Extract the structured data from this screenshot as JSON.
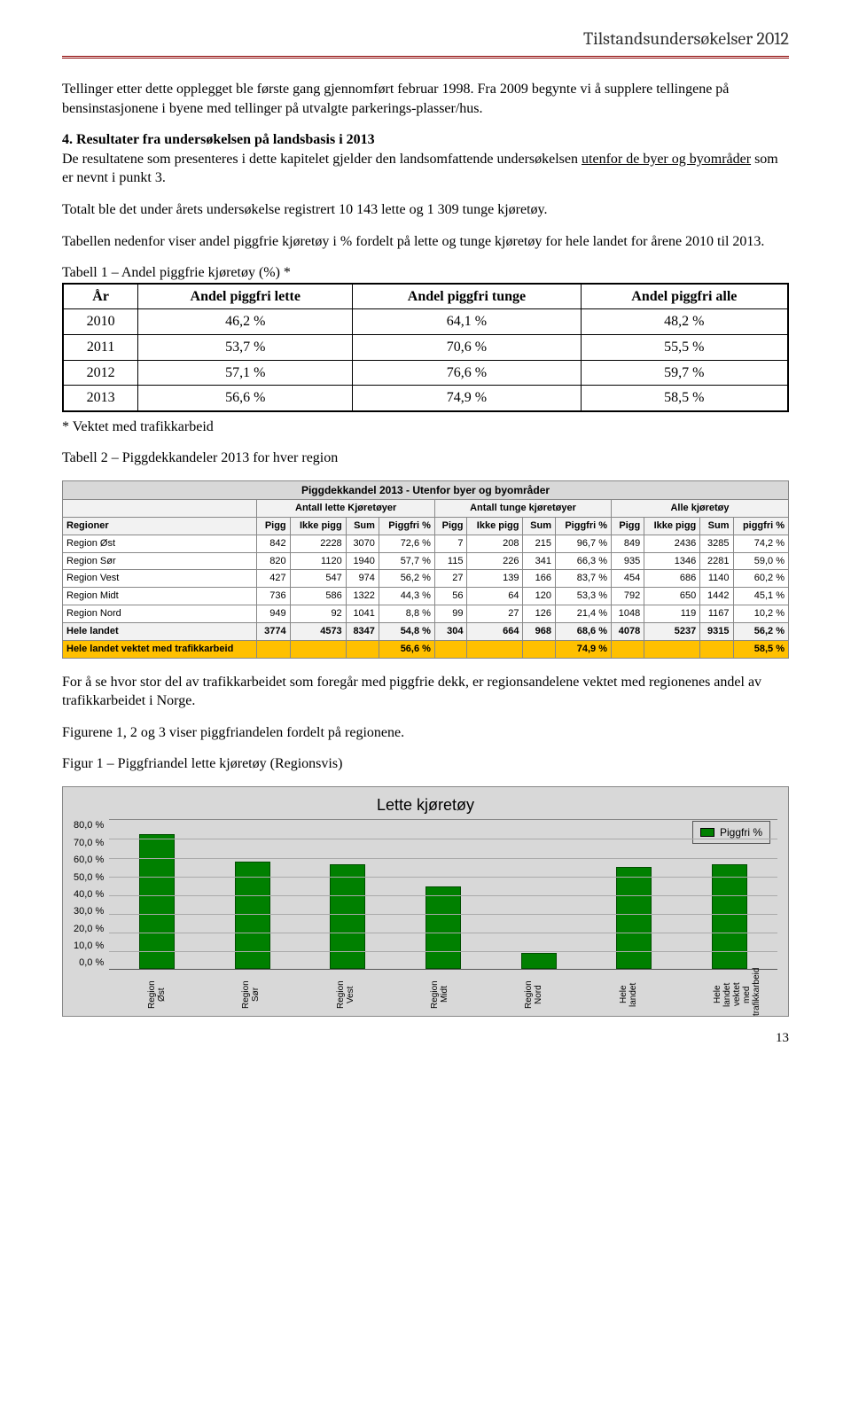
{
  "header": {
    "title": "Tilstandsundersøkelser 2012"
  },
  "paragraphs": {
    "intro": "Tellinger etter dette opplegget ble første gang gjennomført februar 1998. Fra 2009 begynte vi å supplere tellingene på bensinstasjonene i byene med tellinger på utvalgte parkerings-plasser/hus.",
    "section4_title": "4. Resultater fra undersøkelsen på landsbasis i 2013",
    "section4_a": "De resultatene som presenteres i dette kapitelet gjelder den landsomfattende undersøkelsen ",
    "section4_b_underline": "utenfor de byer og byområder",
    "section4_c": " som er nevnt i punkt 3.",
    "total": "Totalt ble det under årets undersøkelse registrert 10 143 lette og 1 309 tunge kjøretøy.",
    "table_intro": "Tabellen nedenfor viser andel piggfrie kjøretøy i % fordelt på lette og tunge kjøretøy for hele landet for årene 2010 til 2013.",
    "t1_caption": "Tabell 1 – Andel piggfrie kjøretøy (%) *",
    "t1_foot": "* Vektet med trafikkarbeid",
    "t2_caption": "Tabell 2 – Piggdekkandeler 2013 for hver region",
    "after_t2_a": "For å se hvor stor del av trafikkarbeidet som foregår med piggfrie dekk, er regionsandelene vektet med regionenes andel av trafikkarbeidet i Norge.",
    "after_t2_b": "Figurene 1, 2 og 3 viser piggfriandelen fordelt på regionene.",
    "fig1_caption": "Figur 1 – Piggfriandel lette kjøretøy (Regionsvis)"
  },
  "table1": {
    "headers": [
      "År",
      "Andel piggfri lette",
      "Andel piggfri tunge",
      "Andel piggfri alle"
    ],
    "rows": [
      [
        "2010",
        "46,2 %",
        "64,1 %",
        "48,2 %"
      ],
      [
        "2011",
        "53,7 %",
        "70,6 %",
        "55,5 %"
      ],
      [
        "2012",
        "57,1 %",
        "76,6 %",
        "59,7 %"
      ],
      [
        "2013",
        "56,6 %",
        "74,9 %",
        "58,5 %"
      ]
    ]
  },
  "table2": {
    "title": "Piggdekkandel 2013 - Utenfor byer og byområder",
    "groups": [
      "",
      "Antall lette Kjøretøyer",
      "Antall tunge kjøretøyer",
      "Alle kjøretøy"
    ],
    "headers": [
      "Regioner",
      "Pigg",
      "Ikke pigg",
      "Sum",
      "Piggfri %",
      "Pigg",
      "Ikke pigg",
      "Sum",
      "Piggfri %",
      "Pigg",
      "Ikke pigg",
      "Sum",
      "piggfri %"
    ],
    "rows": [
      [
        "Region Øst",
        "842",
        "2228",
        "3070",
        "72,6 %",
        "7",
        "208",
        "215",
        "96,7 %",
        "849",
        "2436",
        "3285",
        "74,2 %"
      ],
      [
        "Region Sør",
        "820",
        "1120",
        "1940",
        "57,7 %",
        "115",
        "226",
        "341",
        "66,3 %",
        "935",
        "1346",
        "2281",
        "59,0 %"
      ],
      [
        "Region Vest",
        "427",
        "547",
        "974",
        "56,2 %",
        "27",
        "139",
        "166",
        "83,7 %",
        "454",
        "686",
        "1140",
        "60,2 %"
      ],
      [
        "Region Midt",
        "736",
        "586",
        "1322",
        "44,3 %",
        "56",
        "64",
        "120",
        "53,3 %",
        "792",
        "650",
        "1442",
        "45,1 %"
      ],
      [
        "Region Nord",
        "949",
        "92",
        "1041",
        "8,8 %",
        "99",
        "27",
        "126",
        "21,4 %",
        "1048",
        "119",
        "1167",
        "10,2 %"
      ]
    ],
    "sum": [
      "Hele landet",
      "3774",
      "4573",
      "8347",
      "54,8 %",
      "304",
      "664",
      "968",
      "68,6 %",
      "4078",
      "5237",
      "9315",
      "56,2 %"
    ],
    "highlight": [
      "Hele landet vektet med trafikkarbeid",
      "",
      "",
      "",
      "56,6 %",
      "",
      "",
      "",
      "74,9 %",
      "",
      "",
      "",
      "58,5 %"
    ]
  },
  "chart": {
    "title": "Lette kjøretøy",
    "legend": "Piggfri %",
    "ylabels": [
      "80,0 %",
      "70,0 %",
      "60,0 %",
      "50,0 %",
      "40,0 %",
      "30,0 %",
      "20,0 %",
      "10,0 %",
      "0,0 %"
    ],
    "ymax": 80,
    "categories": [
      "Region Øst",
      "Region Sør",
      "Region Vest",
      "Region Midt",
      "Region Nord",
      "Hele landet",
      "Hele landet vektet med trafikkarbeid"
    ],
    "values": [
      72.6,
      57.7,
      56.2,
      44.3,
      8.8,
      54.8,
      56.6
    ],
    "bar_color": "#008000",
    "background": "#d8d8d8"
  },
  "page_number": "13"
}
